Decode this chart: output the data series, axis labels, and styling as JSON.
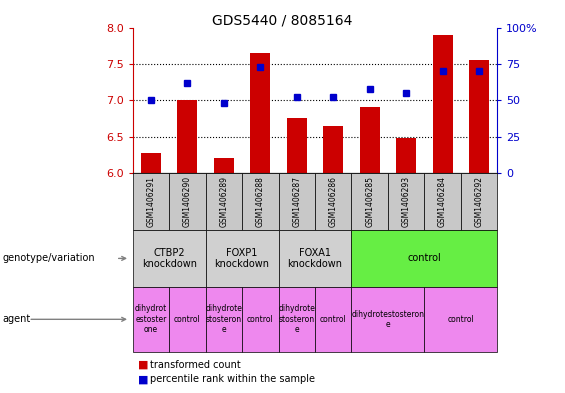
{
  "title": "GDS5440 / 8085164",
  "samples": [
    "GSM1406291",
    "GSM1406290",
    "GSM1406289",
    "GSM1406288",
    "GSM1406287",
    "GSM1406286",
    "GSM1406285",
    "GSM1406293",
    "GSM1406284",
    "GSM1406292"
  ],
  "transformed_count": [
    6.28,
    7.0,
    6.2,
    7.65,
    6.75,
    6.65,
    6.9,
    6.48,
    7.9,
    7.55
  ],
  "percentile_rank": [
    50,
    62,
    48,
    73,
    52,
    52,
    58,
    55,
    70,
    70
  ],
  "ylim_left": [
    6.0,
    8.0
  ],
  "ylim_right": [
    0,
    100
  ],
  "yticks_left": [
    6.0,
    6.5,
    7.0,
    7.5,
    8.0
  ],
  "yticks_right": [
    0,
    25,
    50,
    75,
    100
  ],
  "bar_color": "#cc0000",
  "dot_color": "#0000cc",
  "genotype_groups": [
    {
      "label": "CTBP2\nknockdown",
      "start": 0,
      "end": 2,
      "color": "#d0d0d0"
    },
    {
      "label": "FOXP1\nknockdown",
      "start": 2,
      "end": 4,
      "color": "#d0d0d0"
    },
    {
      "label": "FOXA1\nknockdown",
      "start": 4,
      "end": 6,
      "color": "#d0d0d0"
    },
    {
      "label": "control",
      "start": 6,
      "end": 10,
      "color": "#66ee44"
    }
  ],
  "agent_groups": [
    {
      "label": "dihydrot\nestoster\none",
      "start": 0,
      "end": 1,
      "color": "#ee88ee"
    },
    {
      "label": "control",
      "start": 1,
      "end": 2,
      "color": "#ee88ee"
    },
    {
      "label": "dihydrote\nstosteron\ne",
      "start": 2,
      "end": 3,
      "color": "#ee88ee"
    },
    {
      "label": "control",
      "start": 3,
      "end": 4,
      "color": "#ee88ee"
    },
    {
      "label": "dihydrote\nstosteron\ne",
      "start": 4,
      "end": 5,
      "color": "#ee88ee"
    },
    {
      "label": "control",
      "start": 5,
      "end": 6,
      "color": "#ee88ee"
    },
    {
      "label": "dihydrotestosteron\ne",
      "start": 6,
      "end": 8,
      "color": "#ee88ee"
    },
    {
      "label": "control",
      "start": 8,
      "end": 10,
      "color": "#ee88ee"
    }
  ],
  "sample_box_color": "#c8c8c8",
  "legend_red_label": "transformed count",
  "legend_blue_label": "percentile rank within the sample",
  "left_axis_color": "#cc0000",
  "right_axis_color": "#0000cc"
}
